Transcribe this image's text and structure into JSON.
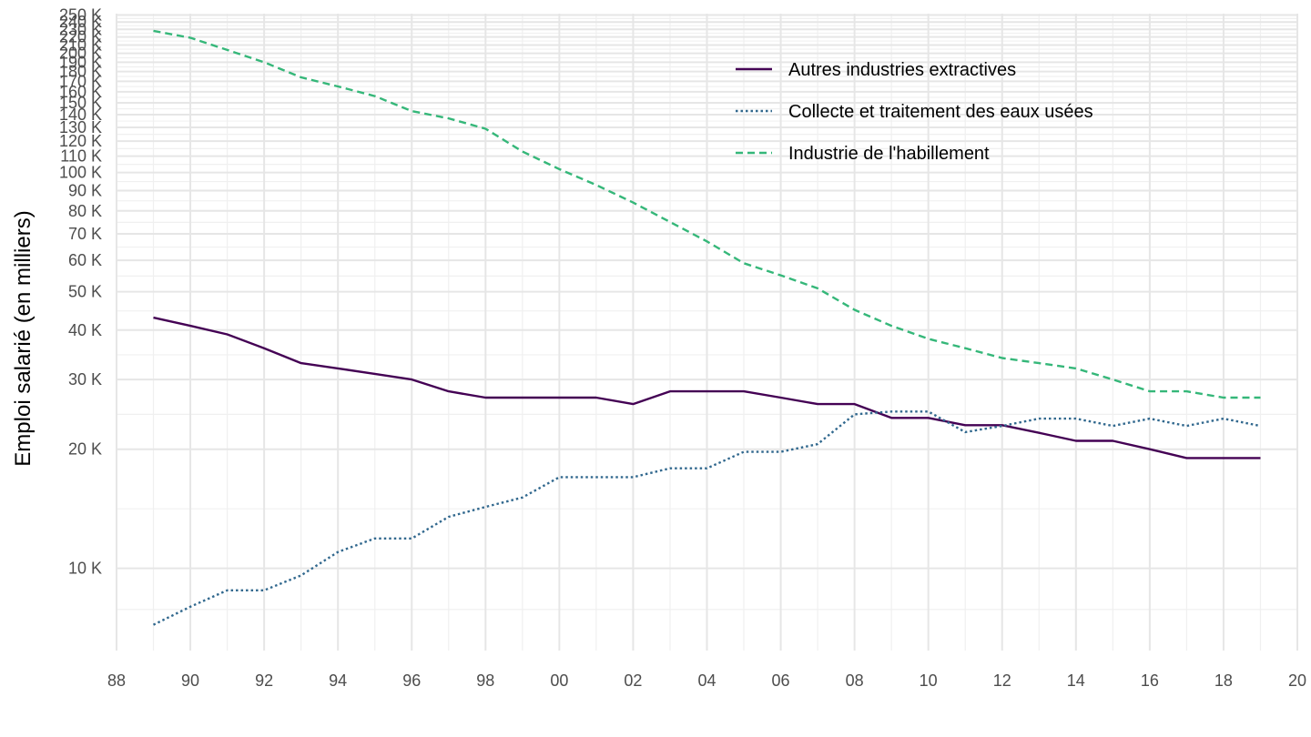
{
  "chart_data": {
    "type": "line",
    "title": "",
    "xlabel": "",
    "ylabel": "Emploi salarié (en milliers)",
    "y_scale": "log",
    "ylim": [
      6200,
      252000
    ],
    "xlim": [
      1988,
      2020
    ],
    "grid": true,
    "legend_position": "top-right",
    "x_ticks": [
      {
        "value": 1988,
        "label": "88"
      },
      {
        "value": 1990,
        "label": "90"
      },
      {
        "value": 1992,
        "label": "92"
      },
      {
        "value": 1994,
        "label": "94"
      },
      {
        "value": 1996,
        "label": "96"
      },
      {
        "value": 1998,
        "label": "98"
      },
      {
        "value": 2000,
        "label": "00"
      },
      {
        "value": 2002,
        "label": "02"
      },
      {
        "value": 2004,
        "label": "04"
      },
      {
        "value": 2006,
        "label": "06"
      },
      {
        "value": 2008,
        "label": "08"
      },
      {
        "value": 2010,
        "label": "10"
      },
      {
        "value": 2012,
        "label": "12"
      },
      {
        "value": 2014,
        "label": "14"
      },
      {
        "value": 2016,
        "label": "16"
      },
      {
        "value": 2018,
        "label": "18"
      },
      {
        "value": 2020,
        "label": "20"
      }
    ],
    "y_ticks": [
      {
        "value": 10000,
        "label": "10 K"
      },
      {
        "value": 20000,
        "label": "20 K"
      },
      {
        "value": 30000,
        "label": "30 K"
      },
      {
        "value": 40000,
        "label": "40 K"
      },
      {
        "value": 50000,
        "label": "50 K"
      },
      {
        "value": 60000,
        "label": "60 K"
      },
      {
        "value": 70000,
        "label": "70 K"
      },
      {
        "value": 80000,
        "label": "80 K"
      },
      {
        "value": 90000,
        "label": "90 K"
      },
      {
        "value": 100000,
        "label": "100 K"
      },
      {
        "value": 110000,
        "label": "110 K"
      },
      {
        "value": 120000,
        "label": "120 K"
      },
      {
        "value": 130000,
        "label": "130 K"
      },
      {
        "value": 140000,
        "label": "140 K"
      },
      {
        "value": 150000,
        "label": "150 K"
      },
      {
        "value": 160000,
        "label": "160 K"
      },
      {
        "value": 170000,
        "label": "170 K"
      },
      {
        "value": 180000,
        "label": "180 K"
      },
      {
        "value": 190000,
        "label": "190 K"
      },
      {
        "value": 200000,
        "label": "200 K"
      },
      {
        "value": 210000,
        "label": "210 K"
      },
      {
        "value": 220000,
        "label": "220 K"
      },
      {
        "value": 230000,
        "label": "230 K"
      },
      {
        "value": 240000,
        "label": "240 K"
      },
      {
        "value": 250000,
        "label": "250 K"
      }
    ],
    "x": [
      1989,
      1990,
      1991,
      1992,
      1993,
      1994,
      1995,
      1996,
      1997,
      1998,
      1999,
      2000,
      2001,
      2002,
      2003,
      2004,
      2005,
      2006,
      2007,
      2008,
      2009,
      2010,
      2011,
      2012,
      2013,
      2014,
      2015,
      2016,
      2017,
      2018,
      2019
    ],
    "series": [
      {
        "name": "Autres industries extractives",
        "color": "#440154",
        "dash": "solid",
        "values": [
          43000,
          41000,
          39000,
          36000,
          33000,
          32000,
          31000,
          30000,
          28000,
          27000,
          27000,
          27000,
          27000,
          26000,
          28000,
          28000,
          28000,
          27000,
          26000,
          26000,
          24000,
          24000,
          23000,
          23000,
          22000,
          21000,
          21000,
          20000,
          19000,
          19000,
          19000
        ]
      },
      {
        "name": "Collecte et traitement des eaux usées",
        "color": "#31688e",
        "dash": "dotted",
        "values": [
          7200,
          8000,
          8800,
          8800,
          9600,
          11000,
          11900,
          11900,
          13500,
          14300,
          15100,
          17000,
          17000,
          17000,
          17900,
          17900,
          19700,
          19700,
          20600,
          24500,
          24900,
          24900,
          22100,
          22900,
          23900,
          23900,
          22900,
          23900,
          22900,
          23900,
          22900
        ]
      },
      {
        "name": "Industrie de l'habillement",
        "color": "#35b779",
        "dash": "dashed",
        "values": [
          228000,
          219000,
          204000,
          190000,
          174000,
          165000,
          156000,
          143000,
          137000,
          129000,
          113000,
          102000,
          93000,
          84000,
          75000,
          67000,
          59000,
          55000,
          51000,
          45000,
          41000,
          38000,
          36000,
          34000,
          33000,
          32000,
          30000,
          28000,
          28000,
          27000,
          27000
        ]
      }
    ]
  }
}
